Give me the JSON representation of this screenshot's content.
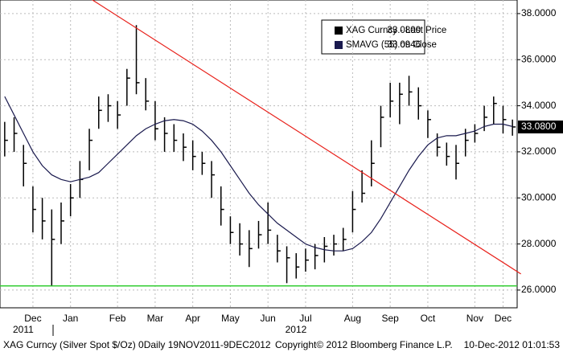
{
  "chart_data": {
    "type": "ohlc",
    "categories": [
      null,
      null,
      null,
      "Dec",
      null,
      null,
      null,
      "Jan",
      null,
      null,
      null,
      null,
      "Feb",
      null,
      null,
      null,
      "Mar",
      null,
      null,
      null,
      "Apr",
      null,
      null,
      null,
      "May",
      null,
      null,
      null,
      "Jun",
      null,
      null,
      null,
      "Jul",
      null,
      null,
      null,
      null,
      "Aug",
      null,
      null,
      null,
      "Sep",
      null,
      null,
      null,
      "Oct",
      null,
      null,
      null,
      null,
      "Nov",
      null,
      null,
      "Dec",
      null
    ],
    "year_labels": [
      {
        "index": 3,
        "label": "2011"
      },
      {
        "index": 32,
        "label": "2012"
      }
    ],
    "series": [
      {
        "name": "XAG Curncy - Last Price",
        "legend_value": "33.0800",
        "color": "#000000",
        "high": [
          33.3,
          33.5,
          32.3,
          30.5,
          30.0,
          29.5,
          29.8,
          30.6,
          31.6,
          33.0,
          34.4,
          34.5,
          34.2,
          35.6,
          37.5,
          35.2,
          34.2,
          33.5,
          33.2,
          32.8,
          32.5,
          32.0,
          31.6,
          30.5,
          29.2,
          28.9,
          28.6,
          29.0,
          29.8,
          28.4,
          27.9,
          27.6,
          27.8,
          28.0,
          28.3,
          28.4,
          28.7,
          30.3,
          31.2,
          32.5,
          34.0,
          35.0,
          35.0,
          35.3,
          34.8,
          33.8,
          32.8,
          32.4,
          32.3,
          33.0,
          33.2,
          34.0,
          34.4,
          34.0,
          33.4
        ],
        "low": [
          31.8,
          32.0,
          30.5,
          28.5,
          28.2,
          26.2,
          28.0,
          29.2,
          30.0,
          31.2,
          33.0,
          33.3,
          33.0,
          34.0,
          34.5,
          33.8,
          32.5,
          32.0,
          32.0,
          31.6,
          31.2,
          31.0,
          30.0,
          28.8,
          28.0,
          27.5,
          27.0,
          27.8,
          28.0,
          27.2,
          26.3,
          26.5,
          26.8,
          26.9,
          27.2,
          27.5,
          27.7,
          28.5,
          29.8,
          30.5,
          32.2,
          33.5,
          33.2,
          34.0,
          33.4,
          32.6,
          31.8,
          31.4,
          30.8,
          31.8,
          32.4,
          32.9,
          33.2,
          32.8,
          32.7
        ],
        "values": [
          32.5,
          32.8,
          31.5,
          29.5,
          29.0,
          28.2,
          29.0,
          30.0,
          30.8,
          32.5,
          33.8,
          34.0,
          33.6,
          35.2,
          35.0,
          34.2,
          33.0,
          32.8,
          32.5,
          32.2,
          31.8,
          31.5,
          31.0,
          29.5,
          28.5,
          28.0,
          27.8,
          28.4,
          28.6,
          27.7,
          27.4,
          27.0,
          27.3,
          27.5,
          27.9,
          28.0,
          28.2,
          29.5,
          30.2,
          31.5,
          33.5,
          34.2,
          34.5,
          34.6,
          34.0,
          33.4,
          32.2,
          31.8,
          31.5,
          32.5,
          32.8,
          33.5,
          34.1,
          33.4,
          33.08
        ]
      },
      {
        "name": "SMAVG (55) on Close",
        "legend_value": "33.0946",
        "color": "#1a1a4e",
        "values": [
          34.4,
          33.6,
          32.8,
          32.0,
          31.4,
          31.0,
          30.8,
          30.7,
          30.8,
          30.9,
          31.1,
          31.5,
          31.9,
          32.3,
          32.7,
          33.0,
          33.2,
          33.35,
          33.4,
          33.35,
          33.2,
          32.9,
          32.5,
          32.0,
          31.4,
          30.8,
          30.2,
          29.7,
          29.3,
          28.9,
          28.6,
          28.3,
          28.0,
          27.85,
          27.75,
          27.7,
          27.7,
          27.8,
          28.1,
          28.5,
          29.1,
          29.8,
          30.5,
          31.2,
          31.8,
          32.3,
          32.6,
          32.7,
          32.7,
          32.8,
          32.9,
          33.1,
          33.2,
          33.2,
          33.1
        ]
      }
    ],
    "last_price_label": {
      "value": 33.08,
      "label": "33.0800"
    },
    "trendline": {
      "color": "#e8201a",
      "start": [
        9.3,
        38.6
      ],
      "end": [
        54.9,
        26.7
      ]
    },
    "support_line": {
      "color": "#33cc33",
      "value": 26.18
    },
    "ylim": [
      25.23,
      38.59
    ],
    "yticks": [
      {
        "value": 26,
        "label": "26.0000"
      },
      {
        "value": 28,
        "label": "28.0000"
      },
      {
        "value": 30,
        "label": "30.0000"
      },
      {
        "value": 32,
        "label": "32.0000"
      },
      {
        "value": 34,
        "label": "34.0000"
      },
      {
        "value": 36,
        "label": "36.0000"
      },
      {
        "value": 38,
        "label": "38.0000"
      }
    ],
    "grid": true,
    "footer": [
      "XAG Curncy (Silver Spot $/Oz) 0Daily 19NOV2011-9DEC2012",
      "Copyright© 2012 Bloomberg Finance L.P.",
      "10-Dec-2012 01:01:53"
    ]
  }
}
